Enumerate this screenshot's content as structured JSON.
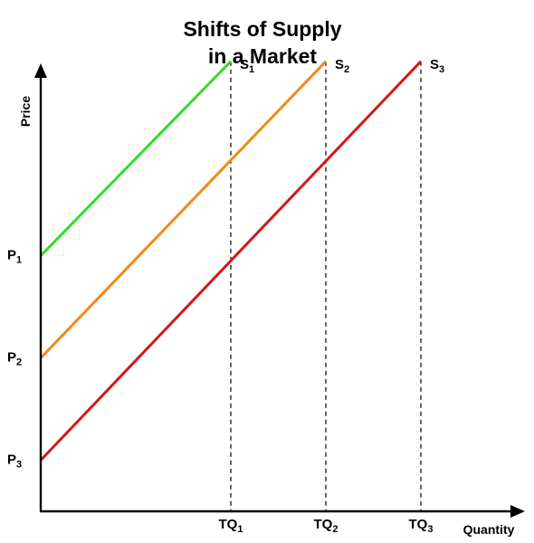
{
  "chart_data": {
    "type": "line",
    "title_lines": [
      "Shifts of Supply",
      "in a Market"
    ],
    "xlabel": "Quantity",
    "ylabel": "Price",
    "grid": false,
    "legend": "none",
    "xlim": [
      0,
      100
    ],
    "ylim": [
      0,
      100
    ],
    "x_ticks": [
      {
        "base": "TQ",
        "sub": "1",
        "value": 40
      },
      {
        "base": "TQ",
        "sub": "2",
        "value": 60
      },
      {
        "base": "TQ",
        "sub": "3",
        "value": 80
      }
    ],
    "y_ticks": [
      {
        "base": "P",
        "sub": "1",
        "value": 50
      },
      {
        "base": "P",
        "sub": "2",
        "value": 30
      },
      {
        "base": "P",
        "sub": "3",
        "value": 10
      }
    ],
    "series": [
      {
        "name": "S",
        "sub": "1",
        "color": "#33dd22",
        "x": [
          0,
          40
        ],
        "y": [
          50,
          88
        ]
      },
      {
        "name": "S",
        "sub": "2",
        "color": "#f28a17",
        "x": [
          0,
          60
        ],
        "y": [
          30,
          88
        ]
      },
      {
        "name": "S",
        "sub": "3",
        "color": "#d21818",
        "x": [
          0,
          80
        ],
        "y": [
          10,
          88
        ]
      }
    ],
    "guide_lines": "dashed vertical lines from each supply curve's end down to the quantity axis"
  }
}
